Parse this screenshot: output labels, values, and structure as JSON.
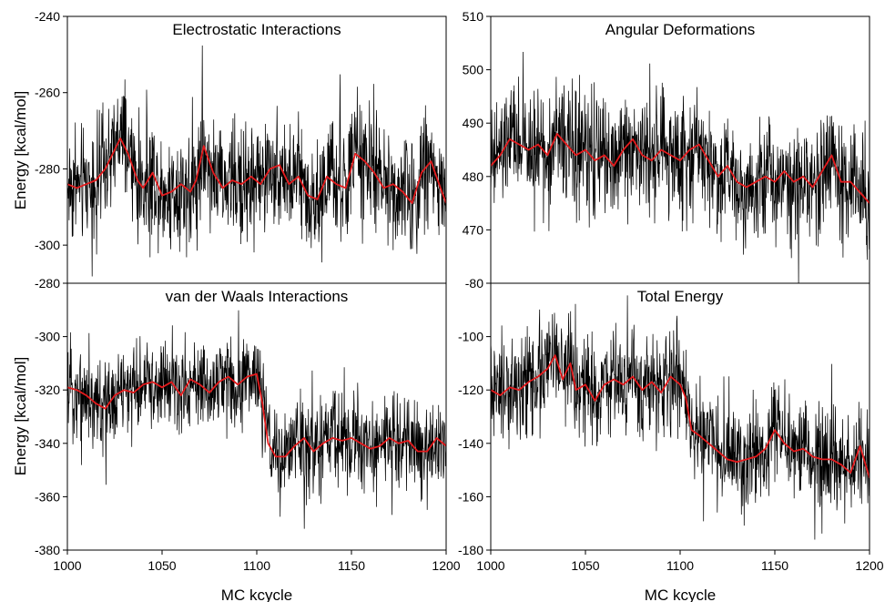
{
  "figure": {
    "ylabel_top": "Energy [kcal/mol]",
    "ylabel_bottom": "Energy [kcal/mol]",
    "xlabel_left": "MC kcycle",
    "xlabel_right": "MC kcycle",
    "colors": {
      "raw": "#000000",
      "smoothed": "#e41a1c",
      "frame": "#000000"
    }
  },
  "chart_data": [
    {
      "type": "line",
      "title": "Electrostatic Interactions",
      "xlim": [
        1000,
        1200
      ],
      "ylim": [
        -310,
        -240
      ],
      "y_ticks": [
        -240,
        -260,
        -280,
        -300
      ],
      "y_tick_labels": [
        "-240",
        "-260",
        "-280",
        "-300"
      ],
      "x_ticks": [],
      "x_tick_labels": [],
      "series": [
        {
          "role": "raw",
          "noise_amplitude": 7,
          "trend_x": [
            1000,
            1005,
            1010,
            1015,
            1020,
            1025,
            1028,
            1032,
            1037,
            1040,
            1045,
            1050,
            1055,
            1060,
            1065,
            1068,
            1072,
            1077,
            1082,
            1087,
            1092,
            1097,
            1102,
            1107,
            1112,
            1117,
            1122,
            1127,
            1132,
            1137,
            1142,
            1147,
            1152,
            1157,
            1162,
            1167,
            1172,
            1177,
            1182,
            1187,
            1192,
            1197,
            1200
          ],
          "trend_y": [
            -284,
            -285,
            -284,
            -283,
            -280,
            -275,
            -272,
            -276,
            -283,
            -285,
            -281,
            -287,
            -286,
            -284,
            -286,
            -283,
            -274,
            -281,
            -285,
            -283,
            -284,
            -282,
            -284,
            -280,
            -279,
            -284,
            -282,
            -287,
            -288,
            -282,
            -284,
            -285,
            -276,
            -278,
            -281,
            -285,
            -284,
            -286,
            -289,
            -281,
            -278,
            -285,
            -289
          ]
        },
        {
          "role": "smoothed",
          "x": [
            1000,
            1005,
            1010,
            1015,
            1020,
            1025,
            1028,
            1032,
            1037,
            1040,
            1045,
            1050,
            1055,
            1060,
            1065,
            1068,
            1072,
            1077,
            1082,
            1087,
            1092,
            1097,
            1102,
            1107,
            1112,
            1117,
            1122,
            1127,
            1132,
            1137,
            1142,
            1147,
            1152,
            1157,
            1162,
            1167,
            1172,
            1177,
            1182,
            1187,
            1192,
            1197,
            1200
          ],
          "y": [
            -284,
            -285,
            -284,
            -283,
            -280,
            -275,
            -272,
            -276,
            -283,
            -285,
            -281,
            -287,
            -286,
            -284,
            -286,
            -283,
            -274,
            -281,
            -285,
            -283,
            -284,
            -282,
            -284,
            -280,
            -279,
            -284,
            -282,
            -287,
            -288,
            -282,
            -284,
            -285,
            -276,
            -278,
            -281,
            -285,
            -284,
            -286,
            -289,
            -281,
            -278,
            -285,
            -289
          ]
        }
      ]
    },
    {
      "type": "line",
      "title": "Angular Deformations",
      "xlim": [
        1000,
        1200
      ],
      "ylim": [
        460,
        510
      ],
      "y_ticks": [
        510,
        500,
        490,
        480,
        470
      ],
      "y_tick_labels": [
        "510",
        "500",
        "490",
        "480",
        "470"
      ],
      "x_ticks": [],
      "x_tick_labels": [],
      "series": [
        {
          "role": "raw",
          "noise_amplitude": 5,
          "trend_x": [
            1000,
            1005,
            1010,
            1015,
            1020,
            1025,
            1030,
            1035,
            1040,
            1045,
            1050,
            1055,
            1060,
            1065,
            1070,
            1075,
            1080,
            1085,
            1090,
            1095,
            1100,
            1105,
            1110,
            1115,
            1120,
            1125,
            1130,
            1135,
            1140,
            1145,
            1150,
            1155,
            1160,
            1165,
            1170,
            1175,
            1180,
            1185,
            1190,
            1195,
            1200
          ],
          "trend_y": [
            482,
            484,
            487,
            486,
            485,
            486,
            484,
            488,
            486,
            484,
            485,
            483,
            484,
            482,
            485,
            487,
            484,
            483,
            485,
            484,
            483,
            485,
            486,
            483,
            480,
            482,
            479,
            478,
            479,
            480,
            479,
            481,
            479,
            480,
            478,
            481,
            484,
            479,
            479,
            477,
            475
          ]
        },
        {
          "role": "smoothed",
          "x": [
            1000,
            1005,
            1010,
            1015,
            1020,
            1025,
            1030,
            1035,
            1040,
            1045,
            1050,
            1055,
            1060,
            1065,
            1070,
            1075,
            1080,
            1085,
            1090,
            1095,
            1100,
            1105,
            1110,
            1115,
            1120,
            1125,
            1130,
            1135,
            1140,
            1145,
            1150,
            1155,
            1160,
            1165,
            1170,
            1175,
            1180,
            1185,
            1190,
            1195,
            1200
          ],
          "y": [
            482,
            484,
            487,
            486,
            485,
            486,
            484,
            488,
            486,
            484,
            485,
            483,
            484,
            482,
            485,
            487,
            484,
            483,
            485,
            484,
            483,
            485,
            486,
            483,
            480,
            482,
            479,
            478,
            479,
            480,
            479,
            481,
            479,
            480,
            478,
            481,
            484,
            479,
            479,
            477,
            475
          ]
        }
      ]
    },
    {
      "type": "line",
      "title": "van der Waals Interactions",
      "xlim": [
        1000,
        1200
      ],
      "ylim": [
        -380,
        -280
      ],
      "y_ticks": [
        -280,
        -300,
        -320,
        -340,
        -360,
        -380
      ],
      "y_tick_labels": [
        "-280",
        "-300",
        "-320",
        "-340",
        "-360",
        "-380"
      ],
      "x_ticks": [
        1000,
        1050,
        1100,
        1150,
        1200
      ],
      "x_tick_labels": [
        "1000",
        "1050",
        "1100",
        "1150",
        "1200"
      ],
      "series": [
        {
          "role": "raw",
          "noise_amplitude": 8,
          "trend_x": [
            1000,
            1005,
            1010,
            1015,
            1020,
            1025,
            1030,
            1035,
            1040,
            1045,
            1050,
            1055,
            1060,
            1065,
            1070,
            1075,
            1080,
            1085,
            1090,
            1095,
            1100,
            1103,
            1106,
            1110,
            1115,
            1120,
            1125,
            1130,
            1135,
            1140,
            1145,
            1150,
            1155,
            1160,
            1165,
            1170,
            1175,
            1180,
            1185,
            1190,
            1195,
            1200
          ],
          "trend_y": [
            -319,
            -320,
            -322,
            -325,
            -327,
            -322,
            -320,
            -321,
            -318,
            -317,
            -319,
            -317,
            -322,
            -316,
            -318,
            -321,
            -317,
            -315,
            -318,
            -315,
            -314,
            -325,
            -340,
            -345,
            -345,
            -341,
            -338,
            -343,
            -340,
            -338,
            -339,
            -338,
            -340,
            -342,
            -341,
            -338,
            -340,
            -339,
            -343,
            -343,
            -338,
            -341
          ]
        },
        {
          "role": "smoothed",
          "x": [
            1000,
            1005,
            1010,
            1015,
            1020,
            1025,
            1030,
            1035,
            1040,
            1045,
            1050,
            1055,
            1060,
            1065,
            1070,
            1075,
            1080,
            1085,
            1090,
            1095,
            1100,
            1103,
            1106,
            1110,
            1115,
            1120,
            1125,
            1130,
            1135,
            1140,
            1145,
            1150,
            1155,
            1160,
            1165,
            1170,
            1175,
            1180,
            1185,
            1190,
            1195,
            1200
          ],
          "y": [
            -319,
            -320,
            -322,
            -325,
            -327,
            -322,
            -320,
            -321,
            -318,
            -317,
            -319,
            -317,
            -322,
            -316,
            -318,
            -321,
            -317,
            -315,
            -318,
            -315,
            -314,
            -325,
            -340,
            -345,
            -345,
            -341,
            -338,
            -343,
            -340,
            -338,
            -339,
            -338,
            -340,
            -342,
            -341,
            -338,
            -340,
            -339,
            -343,
            -343,
            -338,
            -341
          ]
        }
      ]
    },
    {
      "type": "line",
      "title": "Total Energy",
      "xlim": [
        1000,
        1200
      ],
      "ylim": [
        -180,
        -80
      ],
      "y_ticks": [
        -80,
        -100,
        -120,
        -140,
        -160,
        -180
      ],
      "y_tick_labels": [
        "-80",
        "-100",
        "-120",
        "-140",
        "-160",
        "-180"
      ],
      "x_ticks": [
        1000,
        1050,
        1100,
        1150,
        1200
      ],
      "x_tick_labels": [
        "1000",
        "1050",
        "1100",
        "1150",
        "1200"
      ],
      "series": [
        {
          "role": "raw",
          "noise_amplitude": 9,
          "trend_x": [
            1000,
            1005,
            1010,
            1015,
            1020,
            1025,
            1030,
            1034,
            1038,
            1042,
            1045,
            1050,
            1055,
            1060,
            1065,
            1070,
            1075,
            1080,
            1085,
            1090,
            1095,
            1100,
            1103,
            1106,
            1110,
            1115,
            1120,
            1125,
            1130,
            1135,
            1140,
            1145,
            1150,
            1155,
            1160,
            1165,
            1170,
            1175,
            1180,
            1185,
            1190,
            1195,
            1200
          ],
          "trend_y": [
            -120,
            -122,
            -119,
            -120,
            -117,
            -115,
            -112,
            -107,
            -116,
            -110,
            -120,
            -118,
            -124,
            -118,
            -116,
            -118,
            -115,
            -120,
            -117,
            -121,
            -115,
            -118,
            -123,
            -135,
            -137,
            -140,
            -143,
            -146,
            -147,
            -146,
            -145,
            -142,
            -135,
            -140,
            -143,
            -142,
            -145,
            -146,
            -146,
            -148,
            -151,
            -141,
            -153
          ]
        },
        {
          "role": "smoothed",
          "x": [
            1000,
            1005,
            1010,
            1015,
            1020,
            1025,
            1030,
            1034,
            1038,
            1042,
            1045,
            1050,
            1055,
            1060,
            1065,
            1070,
            1075,
            1080,
            1085,
            1090,
            1095,
            1100,
            1103,
            1106,
            1110,
            1115,
            1120,
            1125,
            1130,
            1135,
            1140,
            1145,
            1150,
            1155,
            1160,
            1165,
            1170,
            1175,
            1180,
            1185,
            1190,
            1195,
            1200
          ],
          "y": [
            -120,
            -122,
            -119,
            -120,
            -117,
            -115,
            -112,
            -107,
            -116,
            -110,
            -120,
            -118,
            -124,
            -118,
            -116,
            -118,
            -115,
            -120,
            -117,
            -121,
            -115,
            -118,
            -123,
            -135,
            -137,
            -140,
            -143,
            -146,
            -147,
            -146,
            -145,
            -142,
            -135,
            -140,
            -143,
            -142,
            -145,
            -146,
            -146,
            -148,
            -151,
            -141,
            -153
          ]
        }
      ]
    }
  ]
}
